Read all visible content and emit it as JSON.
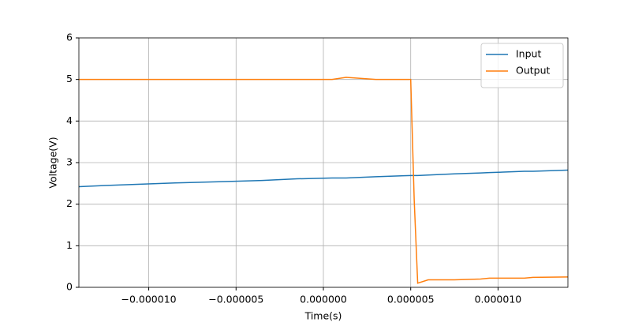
{
  "chart_data": {
    "type": "line",
    "x_label": "Time(s)",
    "y_label": "Voltage(V)",
    "x": [
      -1.4e-05,
      -1.25e-05,
      -1.05e-05,
      -8.5e-06,
      -6e-06,
      -3.5e-06,
      -1.5e-06,
      5e-07,
      1.3e-06,
      3e-06,
      5e-06,
      5.2e-06,
      5.4e-06,
      6e-06,
      7.5e-06,
      9e-06,
      9.5e-06,
      1.15e-05,
      1.2e-05,
      1.4e-05
    ],
    "series": [
      {
        "name": "Input",
        "color": "#1f77b4",
        "values": [
          2.42,
          2.45,
          2.48,
          2.51,
          2.54,
          2.57,
          2.61,
          2.63,
          2.63,
          2.66,
          2.69,
          2.69,
          2.69,
          2.7,
          2.73,
          2.75,
          2.76,
          2.79,
          2.79,
          2.82
        ]
      },
      {
        "name": "Output",
        "color": "#ff7f0e",
        "values": [
          5,
          5,
          5,
          5,
          5,
          5,
          5,
          5,
          5.05,
          5,
          5,
          2.1,
          0.1,
          0.18,
          0.18,
          0.2,
          0.22,
          0.22,
          0.24,
          0.25
        ]
      }
    ],
    "xlim": [
      -1.4e-05,
      1.4e-05
    ],
    "xticks": [
      {
        "value": -1e-05,
        "label": "−0.000010"
      },
      {
        "value": -5e-06,
        "label": "−0.000005"
      },
      {
        "value": 0,
        "label": "0.000000"
      },
      {
        "value": 5e-06,
        "label": "0.000005"
      },
      {
        "value": 1e-05,
        "label": "0.000010"
      }
    ],
    "ylim": [
      0,
      6
    ],
    "yticks": [
      0,
      1,
      2,
      3,
      4,
      5,
      6
    ],
    "grid": true,
    "legend": "upper-right"
  }
}
